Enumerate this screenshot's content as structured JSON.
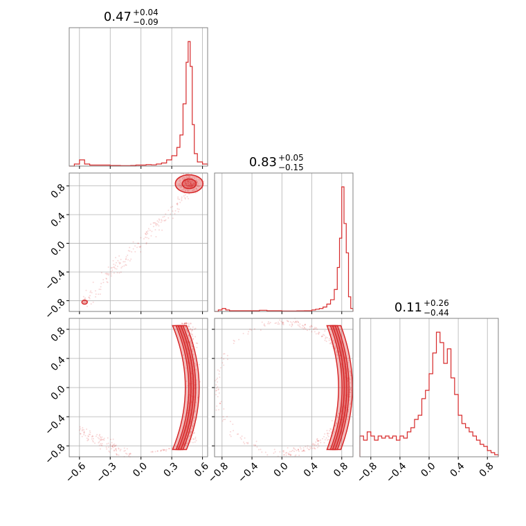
{
  "chart_data": {
    "type": "corner",
    "color": "#d62728",
    "grid": true,
    "panels": [
      {
        "kind": "hist",
        "row": 0,
        "col": 0,
        "title": {
          "value": "0.47",
          "upper": "+0.04",
          "lower": "−0.09"
        },
        "xlim": [
          -0.7,
          0.65
        ],
        "bins_x": [
          -0.7,
          -0.65,
          -0.6,
          -0.55,
          -0.5,
          -0.45,
          -0.4,
          -0.35,
          -0.3,
          -0.25,
          -0.2,
          -0.15,
          -0.1,
          -0.05,
          0.0,
          0.05,
          0.1,
          0.15,
          0.2,
          0.25,
          0.3,
          0.35,
          0.38,
          0.41,
          0.44,
          0.46,
          0.48,
          0.5,
          0.52,
          0.55,
          0.6,
          0.65
        ],
        "counts": [
          0,
          1,
          3,
          1,
          0.5,
          0.5,
          0.5,
          0.5,
          0.3,
          0.3,
          0.2,
          0.2,
          0.3,
          0.5,
          0.5,
          0.7,
          0.6,
          1,
          1.5,
          3,
          5,
          9,
          15,
          30,
          50,
          60,
          48,
          20,
          6,
          2,
          1
        ]
      },
      {
        "kind": "hist",
        "row": 1,
        "col": 1,
        "title": {
          "value": "0.83",
          "upper": "+0.05",
          "lower": "−0.15"
        },
        "xlim": [
          -0.9,
          0.95
        ],
        "bins_x": [
          -0.9,
          -0.85,
          -0.8,
          -0.75,
          -0.7,
          -0.6,
          -0.5,
          -0.4,
          -0.3,
          -0.2,
          -0.1,
          0.0,
          0.1,
          0.2,
          0.3,
          0.4,
          0.45,
          0.5,
          0.55,
          0.6,
          0.65,
          0.7,
          0.74,
          0.77,
          0.8,
          0.83,
          0.86,
          0.89,
          0.92,
          0.95
        ],
        "counts": [
          0,
          1,
          2,
          1,
          0.5,
          0.5,
          0.5,
          0.5,
          0.8,
          0.5,
          0.5,
          0.3,
          0.3,
          0.4,
          0.5,
          1,
          1.5,
          2,
          3,
          5,
          8,
          15,
          30,
          50,
          85,
          60,
          40,
          10,
          2
        ]
      },
      {
        "kind": "hist",
        "row": 2,
        "col": 2,
        "title": {
          "value": "0.11",
          "upper": "+0.26",
          "lower": "−0.44"
        },
        "xlim": [
          -0.95,
          0.95
        ],
        "bins_x": [
          -0.95,
          -0.9,
          -0.85,
          -0.8,
          -0.75,
          -0.7,
          -0.65,
          -0.6,
          -0.55,
          -0.5,
          -0.45,
          -0.4,
          -0.35,
          -0.3,
          -0.25,
          -0.2,
          -0.15,
          -0.1,
          -0.05,
          0.0,
          0.05,
          0.1,
          0.15,
          0.2,
          0.25,
          0.3,
          0.35,
          0.4,
          0.45,
          0.5,
          0.55,
          0.6,
          0.65,
          0.7,
          0.75,
          0.8,
          0.85,
          0.9,
          0.95
        ],
        "counts": [
          10,
          8,
          12,
          10,
          8,
          10,
          9,
          10,
          9,
          10,
          8,
          10,
          9,
          12,
          14,
          18,
          20,
          28,
          32,
          40,
          50,
          60,
          55,
          45,
          52,
          38,
          30,
          20,
          16,
          14,
          12,
          10,
          8,
          6,
          5,
          3,
          2,
          1
        ]
      },
      {
        "kind": "scatter",
        "row": 1,
        "col": 0,
        "xlim": [
          -0.7,
          0.65
        ],
        "ylim": [
          -0.95,
          0.98
        ],
        "note": "samples concentrated near (0.47, 0.83)"
      },
      {
        "kind": "scatter",
        "row": 2,
        "col": 0,
        "xlim": [
          -0.7,
          0.65
        ],
        "ylim": [
          -0.95,
          0.95
        ],
        "note": "arc near x≈0.5"
      },
      {
        "kind": "scatter",
        "row": 2,
        "col": 1,
        "xlim": [
          -0.9,
          0.95
        ],
        "ylim": [
          -0.95,
          0.95
        ],
        "note": "arc near x≈0.85"
      }
    ],
    "axes": {
      "x0_ticks": [
        -0.6,
        -0.3,
        0.0,
        0.3,
        0.6
      ],
      "x0_tick_labels": [
        "−0.6",
        "−0.3",
        "0.0",
        "0.3",
        "0.6"
      ],
      "x1_ticks": [
        -0.8,
        -0.4,
        0.0,
        0.4,
        0.8
      ],
      "x1_tick_labels": [
        "−0.8",
        "−0.4",
        "0.0",
        "0.4",
        "0.8"
      ],
      "x2_ticks": [
        -0.8,
        -0.4,
        0.0,
        0.4,
        0.8
      ],
      "x2_tick_labels": [
        "−0.8",
        "−0.4",
        "0.0",
        "0.4",
        "0.8"
      ],
      "y1_ticks": [
        0.8,
        0.4,
        0.0,
        -0.4,
        -0.8
      ],
      "y1_tick_labels": [
        "0.8",
        "0.4",
        "0.0",
        "−0.4",
        "−0.8"
      ],
      "y2_ticks": [
        0.8,
        0.4,
        0.0,
        -0.4,
        -0.8
      ],
      "y2_tick_labels": [
        "0.8",
        "0.4",
        "0.0",
        "−0.4",
        "−0.8"
      ]
    }
  }
}
